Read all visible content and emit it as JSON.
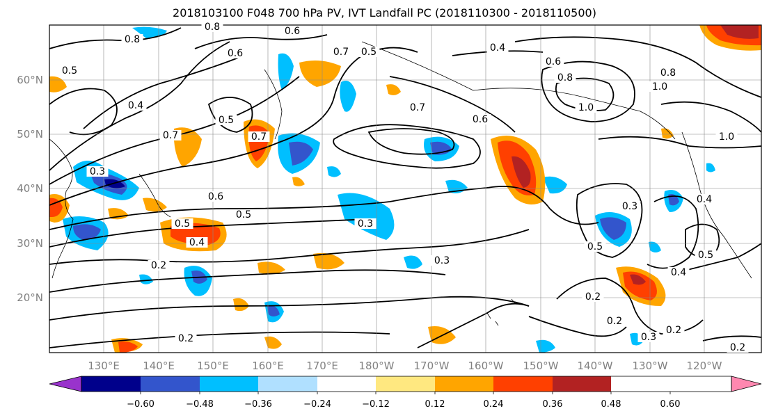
{
  "title": "2018103100 F048 700 hPa PV, IVT Landfall PC (2018110300 - 2018110500)",
  "lat_labels": [
    "60°N",
    "50°N",
    "40°N",
    "30°N",
    "20°N"
  ],
  "lon_labels": [
    "130°E",
    "140°E",
    "150°E",
    "160°E",
    "170°E",
    "180°W",
    "170°W",
    "160°W",
    "150°W",
    "140°W",
    "130°W",
    "120°W"
  ],
  "contour_labels": [
    "0.8",
    "0.8",
    "0.6",
    "0.7",
    "0.6",
    "0.5",
    "0.5",
    "0.4",
    "0.7",
    "0.7",
    "0.6",
    "0.8",
    "1.0",
    "0.4",
    "0.6",
    "0.8",
    "1.0",
    "1.0",
    "0.7",
    "0.5",
    "0.3",
    "0.6",
    "0.5",
    "0.5",
    "0.4",
    "0.3",
    "0.3",
    "0.5",
    "0.2",
    "0.3",
    "0.4",
    "0.5",
    "0.4",
    "0.2",
    "0.2",
    "0.3",
    "0.2",
    "0.2",
    "0.2"
  ],
  "colorbar": {
    "tick_labels": [
      "−0.60",
      "−0.48",
      "−0.36",
      "−0.24",
      "−0.12",
      "0.12",
      "0.24",
      "0.36",
      "0.48",
      "0.60"
    ],
    "colors": [
      "#9933cc",
      "#00008b",
      "#3355cc",
      "#00bfff",
      "#b0e0ff",
      "#ffffff",
      "#ffe880",
      "#ffa500",
      "#ff4000",
      "#b22222",
      "#ff88b0"
    ]
  },
  "fill_colors": {
    "blue_light": "#00bfff",
    "blue_mid": "#3355cc",
    "blue_dark": "#00008b",
    "orange": "#ffa500",
    "orange_red": "#ff4000",
    "dark_red": "#b22222",
    "yellow": "#ffe880"
  }
}
